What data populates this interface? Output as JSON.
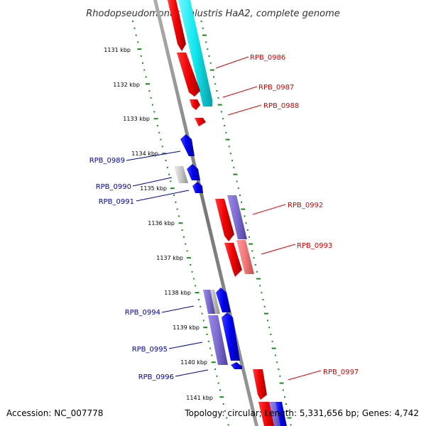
{
  "title": "Rhodopseudomonas palustris HaA2, complete genome",
  "footer": {
    "accession": "Accession: NC_007778",
    "summary": "Topology: circular; Length: 5,331,656 bp; Genes: 4,742"
  },
  "colors": {
    "backbone": "#888888",
    "ticks": "#1a8a1a",
    "gene_red": "#ee1111",
    "gene_cyan": "#11e6ee",
    "gene_blue": "#1111dd",
    "gene_slate": "#7c6ad0",
    "gene_pink": "#f07878",
    "gene_grey": "#c8c8c8",
    "label_red": "#dd0000",
    "label_blue": "#0000aa"
  },
  "kbp_ticks": [
    "1131 kbp",
    "1132 kbp",
    "1133 kbp",
    "1134 kbp",
    "1135 kbp",
    "1136 kbp",
    "1137 kbp",
    "1138 kbp",
    "1139 kbp",
    "1140 kbp",
    "1141 kbp"
  ],
  "labels_right": [
    "RPB_0986",
    "RPB_0987",
    "RPB_0988",
    "RPB_0992",
    "RPB_0993",
    "RPB_0997"
  ],
  "labels_left": [
    "RPB_0989",
    "RPB_0990",
    "RPB_0991",
    "RPB_0994",
    "RPB_0995",
    "RPB_0996"
  ]
}
